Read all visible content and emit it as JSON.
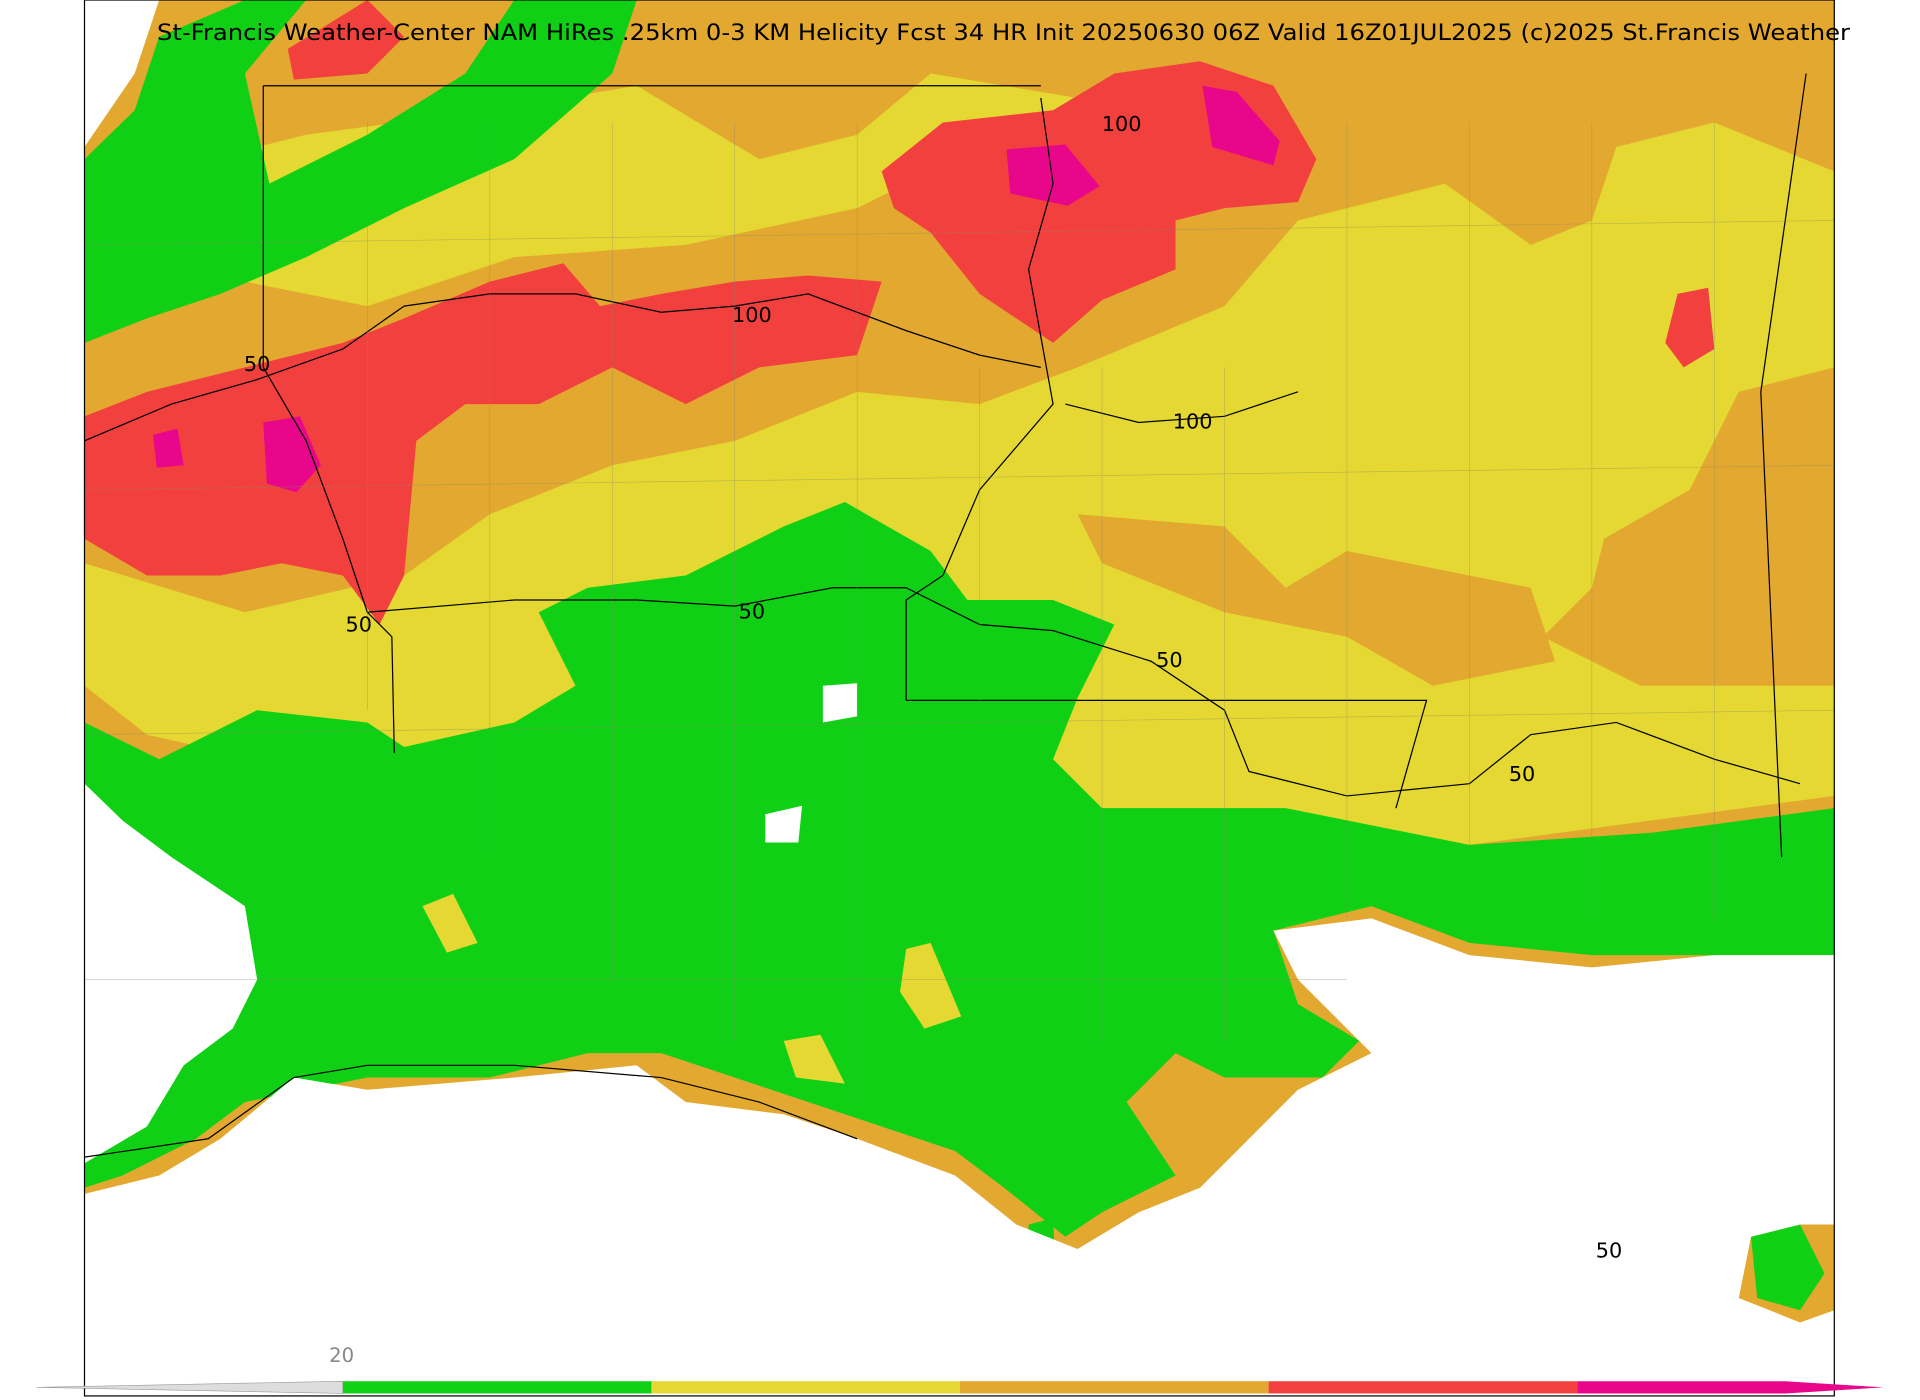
{
  "title": "St-Francis Weather-Center NAM HiRes .25km 0-3 KM Helicity Fcst 34 HR Init 20250630 06Z  Valid 16Z01JUL2025    (c)2025 St.Francis Weather",
  "contour_labels": [
    "100",
    "100",
    "50",
    "100",
    "50",
    "50",
    "50",
    "50",
    "50"
  ],
  "colorbar": {
    "tick_label": "20",
    "colors": [
      "#0fd014",
      "#e5d832",
      "#e3a830",
      "#f2403e",
      "#e8068a"
    ]
  }
}
